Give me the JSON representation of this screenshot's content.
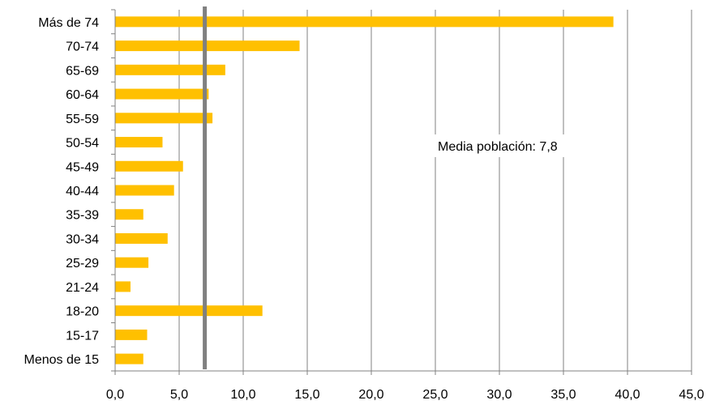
{
  "chart_data": {
    "type": "bar",
    "orientation": "horizontal",
    "categories": [
      "Más de 74",
      "70-74",
      "65-69",
      "60-64",
      "55-59",
      "50-54",
      "45-49",
      "40-44",
      "35-39",
      "30-34",
      "25-29",
      "21-24",
      "18-20",
      "15-17",
      "Menos de 15"
    ],
    "values": [
      38.9,
      14.4,
      8.6,
      7.3,
      7.6,
      3.7,
      5.3,
      4.6,
      2.2,
      4.1,
      2.6,
      1.2,
      11.5,
      2.5,
      2.2
    ],
    "xlim": [
      0,
      45
    ],
    "x_ticks": [
      0,
      5,
      10,
      15,
      20,
      25,
      30,
      35,
      40,
      45
    ],
    "x_tick_labels": [
      "0,0",
      "5,0",
      "10,0",
      "15,0",
      "20,0",
      "25,0",
      "30,0",
      "35,0",
      "40,0",
      "45,0"
    ],
    "grid": "vertical",
    "bar_color": "#FFC000",
    "reference_line": {
      "value": 7.0,
      "color": "#808080"
    },
    "annotation": "Media población: 7,8",
    "title": "",
    "xlabel": "",
    "ylabel": ""
  }
}
